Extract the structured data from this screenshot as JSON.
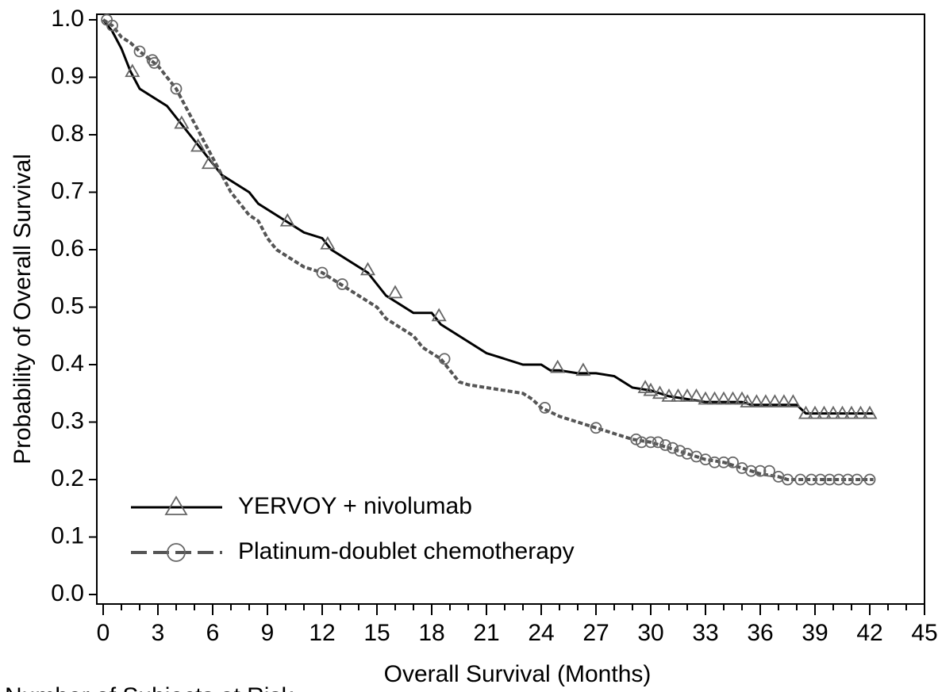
{
  "chart_data": {
    "type": "km_line",
    "xlabel": "Overall Survival (Months)",
    "ylabel": "Probability of Overall Survival",
    "annotation": "Number of Subjects at Risk",
    "xlim": [
      0,
      45
    ],
    "ylim": [
      0,
      1
    ],
    "xticks": [
      0,
      3,
      6,
      9,
      12,
      15,
      18,
      21,
      24,
      27,
      30,
      33,
      36,
      39,
      42,
      45
    ],
    "xminorticks": [
      1,
      2,
      4,
      5,
      7,
      8,
      10,
      11,
      13,
      14,
      16,
      17,
      19,
      20,
      22,
      23,
      25,
      26,
      28,
      29,
      31,
      32,
      34,
      35,
      37,
      38,
      40,
      41,
      43,
      44
    ],
    "yticks": [
      {
        "value": 0,
        "label": "0.0"
      },
      0.1,
      0.2,
      0.3,
      0.4,
      0.5,
      0.6,
      0.7,
      0.8,
      0.9,
      {
        "value": 1,
        "label": "1.0"
      }
    ],
    "legend": "lower left",
    "series": [
      {
        "name": "YERVOY + nivolumab",
        "color": "#000000",
        "dashed": false,
        "marker": "triangle",
        "x": [
          0,
          0.5,
          1,
          1.5,
          2,
          2.5,
          3,
          3.5,
          4,
          4.5,
          5,
          5.5,
          6,
          6.5,
          7,
          7.5,
          8,
          8.5,
          9,
          9.5,
          10,
          10.5,
          11,
          12,
          12.5,
          13,
          13.5,
          14,
          14.5,
          15,
          15.5,
          16,
          16.5,
          17,
          18,
          18.5,
          19,
          19.5,
          20,
          20.5,
          21,
          22,
          23,
          24,
          24.5,
          25,
          26,
          27,
          28,
          28.5,
          29,
          30,
          31,
          32,
          33,
          35,
          35.5,
          38,
          38.5,
          42.2
        ],
        "values": [
          1,
          0.98,
          0.95,
          0.91,
          0.88,
          0.87,
          0.86,
          0.85,
          0.83,
          0.81,
          0.79,
          0.77,
          0.75,
          0.73,
          0.72,
          0.71,
          0.7,
          0.68,
          0.67,
          0.66,
          0.65,
          0.64,
          0.63,
          0.62,
          0.6,
          0.59,
          0.58,
          0.57,
          0.56,
          0.54,
          0.52,
          0.51,
          0.5,
          0.49,
          0.49,
          0.47,
          0.46,
          0.45,
          0.44,
          0.43,
          0.42,
          0.41,
          0.4,
          0.4,
          0.39,
          0.39,
          0.385,
          0.385,
          0.38,
          0.37,
          0.36,
          0.355,
          0.345,
          0.34,
          0.335,
          0.335,
          0.33,
          0.33,
          0.315,
          0.315
        ],
        "censor_x": [
          1.6,
          4.3,
          5.2,
          5.8,
          10.1,
          12.3,
          14.5,
          16,
          18.4,
          24.9,
          26.3,
          29.7,
          30,
          30.5,
          31,
          31.5,
          32,
          32.5,
          33,
          33.5,
          34,
          34.5,
          35,
          35.3,
          35.8,
          36.3,
          36.8,
          37.3,
          37.8,
          38.5,
          39,
          39.5,
          40,
          40.5,
          41,
          41.5,
          42
        ],
        "censor_y": [
          0.91,
          0.82,
          0.78,
          0.75,
          0.65,
          0.61,
          0.565,
          0.525,
          0.485,
          0.395,
          0.39,
          0.36,
          0.355,
          0.35,
          0.345,
          0.345,
          0.345,
          0.345,
          0.34,
          0.34,
          0.34,
          0.34,
          0.34,
          0.335,
          0.335,
          0.335,
          0.335,
          0.335,
          0.335,
          0.315,
          0.315,
          0.315,
          0.315,
          0.315,
          0.315,
          0.315,
          0.315
        ]
      },
      {
        "name": "Platinum-doublet chemotherapy",
        "color": "#555555",
        "dashed": true,
        "marker": "circle",
        "x": [
          0,
          0.5,
          1,
          1.5,
          2,
          3,
          3.5,
          4,
          4.5,
          5,
          5.5,
          6,
          6.5,
          7,
          7.5,
          8,
          8.5,
          9,
          9.5,
          10,
          10.5,
          11,
          12,
          12.5,
          13,
          13.5,
          14,
          14.5,
          15,
          15.5,
          16,
          16.5,
          17,
          17.5,
          18,
          18.5,
          19,
          19.5,
          20,
          21,
          22,
          23,
          23.5,
          24,
          25,
          26,
          27,
          28,
          29,
          30,
          31,
          32,
          33,
          34,
          35,
          36,
          37,
          37.5,
          42.2
        ],
        "values": [
          1,
          0.99,
          0.97,
          0.96,
          0.945,
          0.92,
          0.9,
          0.88,
          0.85,
          0.82,
          0.79,
          0.76,
          0.73,
          0.7,
          0.68,
          0.66,
          0.65,
          0.62,
          0.6,
          0.59,
          0.58,
          0.57,
          0.56,
          0.55,
          0.54,
          0.53,
          0.52,
          0.51,
          0.5,
          0.48,
          0.47,
          0.46,
          0.45,
          0.43,
          0.42,
          0.41,
          0.39,
          0.37,
          0.365,
          0.36,
          0.355,
          0.35,
          0.34,
          0.325,
          0.31,
          0.3,
          0.29,
          0.28,
          0.27,
          0.265,
          0.255,
          0.245,
          0.235,
          0.23,
          0.22,
          0.21,
          0.205,
          0.2,
          0.2
        ],
        "censor_x": [
          0.2,
          0.5,
          2,
          2.7,
          2.8,
          4,
          12,
          13.1,
          18.7,
          24.2,
          27,
          29.2,
          29.5,
          30,
          30.4,
          30.8,
          31.2,
          31.6,
          32,
          32.5,
          33,
          33.5,
          34,
          34.5,
          35,
          35.5,
          36,
          36.5,
          37,
          37.5,
          38.2,
          38.8,
          39.3,
          39.8,
          40.3,
          40.8,
          41.3,
          42
        ],
        "censor_y": [
          1,
          0.99,
          0.945,
          0.93,
          0.925,
          0.88,
          0.56,
          0.54,
          0.41,
          0.325,
          0.29,
          0.27,
          0.265,
          0.265,
          0.265,
          0.26,
          0.255,
          0.25,
          0.245,
          0.24,
          0.235,
          0.23,
          0.23,
          0.23,
          0.22,
          0.215,
          0.215,
          0.215,
          0.205,
          0.2,
          0.2,
          0.2,
          0.2,
          0.2,
          0.2,
          0.2,
          0.2,
          0.2
        ]
      }
    ]
  }
}
